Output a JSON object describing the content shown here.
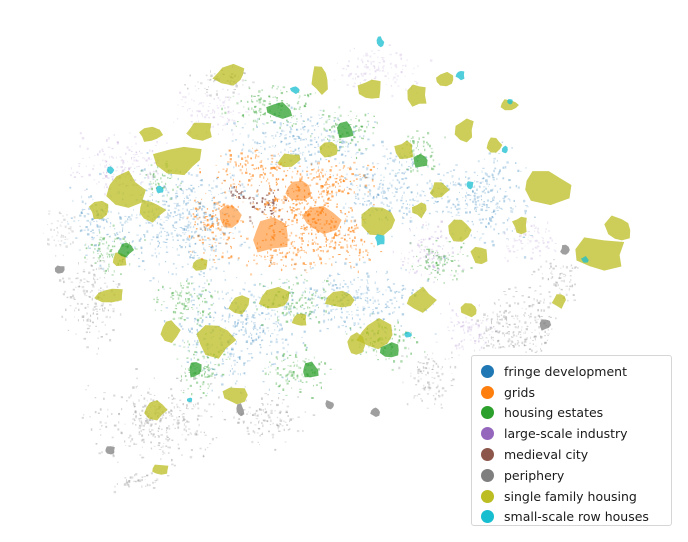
{
  "legend": {
    "items": [
      {
        "label": "fringe development",
        "color": "#1f77b4"
      },
      {
        "label": "grids",
        "color": "#ff7f0e"
      },
      {
        "label": "housing estates",
        "color": "#2ca02c"
      },
      {
        "label": "large-scale industry",
        "color": "#9467bd"
      },
      {
        "label": "medieval city",
        "color": "#8c564b"
      },
      {
        "label": "periphery",
        "color": "#7f7f7f"
      },
      {
        "label": "single family housing",
        "color": "#bcbd22"
      },
      {
        "label": "small-scale row houses",
        "color": "#17becf"
      }
    ]
  }
}
